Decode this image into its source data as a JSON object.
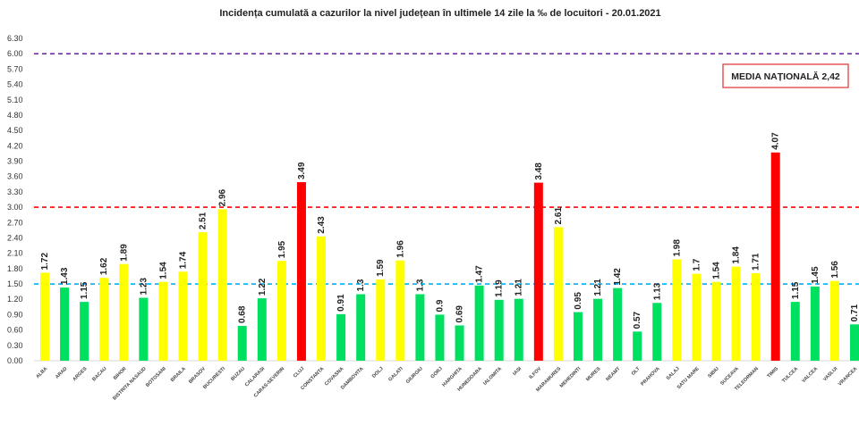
{
  "chart_data": {
    "type": "bar",
    "title": "Incidența cumulată a cazurilor la nivel județean în ultimele 14 zile la ‰ de locuitori - 20.01.2021",
    "xlabel": "",
    "ylabel": "",
    "ylim": [
      0,
      6.3
    ],
    "yticks": [
      "0.00",
      "0.30",
      "0.60",
      "0.90",
      "1.20",
      "1.50",
      "1.80",
      "2.10",
      "2.40",
      "2.70",
      "3.00",
      "3.30",
      "3.60",
      "3.90",
      "4.20",
      "4.50",
      "4.80",
      "5.10",
      "5.40",
      "5.70",
      "6.00",
      "6.30"
    ],
    "grid": false,
    "categories": [
      "ALBA",
      "ARAD",
      "ARGES",
      "BACAU",
      "BIHOR",
      "BISTRITA NASAUD",
      "BOTOSANI",
      "BRAILA",
      "BRASOV",
      "BUCURESTI",
      "BUZAU",
      "CALARASI",
      "CARAS-SEVERIN",
      "CLUJ",
      "CONSTANTA",
      "COVASNA",
      "DAMBOVITA",
      "DOLJ",
      "GALATI",
      "GIURGIU",
      "GORJ",
      "HARGHITA",
      "HUNEDOARA",
      "IALOMITA",
      "IASI",
      "ILFOV",
      "MARAMURES",
      "MEHEDINTI",
      "MURES",
      "NEAMT",
      "OLT",
      "PRAHOVA",
      "SALAJ",
      "SATU MARE",
      "SIBIU",
      "SUCEAVA",
      "TELEORMAN",
      "TIMIS",
      "TULCEA",
      "VALCEA",
      "VASLUI",
      "VRANCEA"
    ],
    "values": [
      1.72,
      1.43,
      1.15,
      1.62,
      1.89,
      1.23,
      1.54,
      1.74,
      2.51,
      2.96,
      0.68,
      1.22,
      1.95,
      3.49,
      2.43,
      0.91,
      1.3,
      1.59,
      1.96,
      1.3,
      0.9,
      0.69,
      1.47,
      1.19,
      1.21,
      3.48,
      2.61,
      0.95,
      1.21,
      1.42,
      0.57,
      1.13,
      1.98,
      1.7,
      1.54,
      1.84,
      1.71,
      4.07,
      1.15,
      1.45,
      1.56,
      0.71
    ],
    "reference_lines": [
      {
        "value": 6.0,
        "color": "#7030a0"
      },
      {
        "value": 3.0,
        "color": "#ff0000"
      },
      {
        "value": 1.5,
        "color": "#00b0f0"
      }
    ],
    "colors": {
      "low": "#00e060",
      "medium": "#ffff00",
      "high": "#ff0000"
    },
    "annotation": "MEDIA NAȚIONALĂ 2,42",
    "annotation_border_color": "#e04040"
  }
}
